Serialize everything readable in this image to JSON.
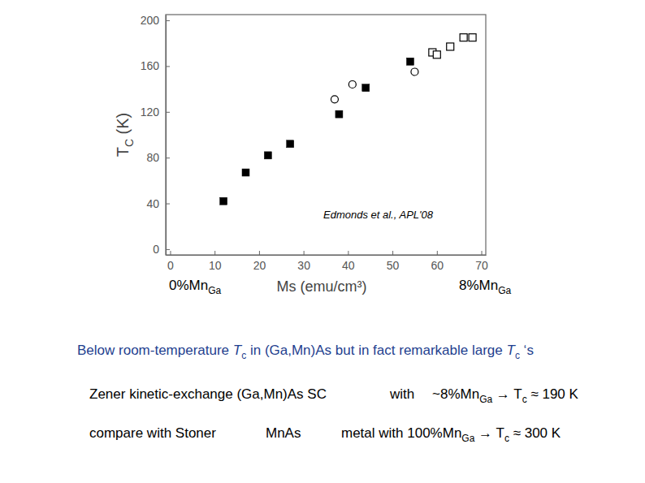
{
  "chart_data": {
    "type": "scatter",
    "xlabel": "Ms (emu/cm³)",
    "ylabel": [
      [
        "T",
        "C"
      ],
      " (K)"
    ],
    "annotation": "Edmonds et al.,  APL'08",
    "xlim": [
      -1,
      71
    ],
    "ylim": [
      -5,
      205
    ],
    "xticks": [
      0,
      10,
      20,
      30,
      40,
      50,
      60,
      70
    ],
    "yticks": [
      0,
      40,
      80,
      120,
      160,
      200
    ],
    "grid": false,
    "series": [
      {
        "marker": "square",
        "color": "#000000",
        "x": [
          12,
          17,
          22,
          27,
          38,
          44,
          54
        ],
        "values": [
          42,
          67,
          82,
          92,
          118,
          141,
          164
        ]
      },
      {
        "marker": "circle-open",
        "color": "#000000",
        "x": [
          37,
          41,
          55
        ],
        "values": [
          131,
          144,
          155
        ]
      },
      {
        "marker": "square-open",
        "color": "#000000",
        "x": [
          59,
          60,
          63,
          66,
          68
        ],
        "values": [
          172,
          170,
          177,
          185,
          185
        ]
      }
    ]
  },
  "slide": {
    "labels": [
      [
        [
          "0%Mn",
          "Ga"
        ]
      ],
      [
        [
          "8%Mn",
          "Ga"
        ]
      ]
    ],
    "lines": [
      [
        [
          "Below room-temperature ",
          [
            "T",
            "c"
          ],
          " in (Ga,Mn)As but in fact remarkable large ",
          [
            "T",
            "c"
          ],
          " ‘s"
        ]
      ],
      [
        [
          "Zener kinetic-exchange (Ga,Mn)As SC"
        ],
        [
          "with"
        ],
        [
          "~",
          [
            "8%Mn",
            "Ga"
          ],
          " → ",
          [
            "T",
            "c"
          ],
          " ≈ 190 K"
        ]
      ],
      [
        [
          "compare with Stoner"
        ],
        [
          "MnAs"
        ],
        [
          "metal  with ",
          [
            "100%Mn",
            "Ga"
          ],
          " → ",
          [
            "T",
            "c"
          ],
          " ≈ 300 K"
        ]
      ]
    ]
  }
}
